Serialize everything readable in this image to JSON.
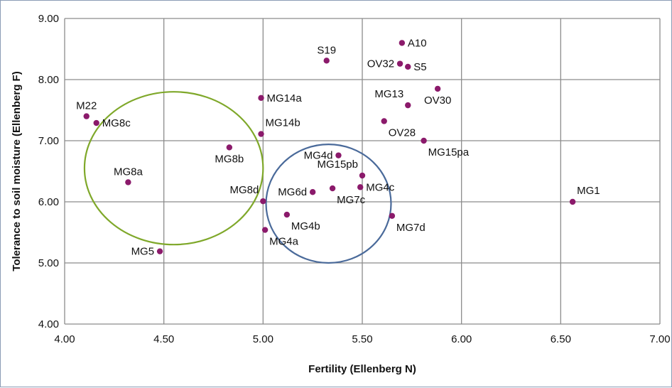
{
  "chart_data": {
    "type": "scatter",
    "title": "",
    "xlabel": "Fertility (Ellenberg N)",
    "ylabel": "Tolerance to soil moisture (Ellenberg F)",
    "xlim": [
      4.0,
      7.0
    ],
    "ylim": [
      4.0,
      9.0
    ],
    "xticks": [
      "4.00",
      "4.50",
      "5.00",
      "5.50",
      "6.00",
      "6.50",
      "7.00"
    ],
    "yticks": [
      "4.00",
      "5.00",
      "6.00",
      "7.00",
      "8.00",
      "9.00"
    ],
    "grid": true,
    "legend": "none",
    "colors": {
      "point": "#8b1a6b",
      "grid": "#8c8c8c",
      "green_ellipse": "#7fa82a",
      "blue_ellipse": "#4a6a9a"
    },
    "points": [
      {
        "label": "A10",
        "x": 5.7,
        "y": 8.6,
        "anchor": "right"
      },
      {
        "label": "S19",
        "x": 5.32,
        "y": 8.31,
        "anchor": "above"
      },
      {
        "label": "OV32",
        "x": 5.69,
        "y": 8.26,
        "anchor": "left"
      },
      {
        "label": "S5",
        "x": 5.73,
        "y": 8.21,
        "anchor": "right"
      },
      {
        "label": "OV30",
        "x": 5.88,
        "y": 7.85,
        "anchor": "below"
      },
      {
        "label": "MG13",
        "x": 5.73,
        "y": 7.58,
        "anchor": "above-left"
      },
      {
        "label": "MG14a",
        "x": 4.99,
        "y": 7.7,
        "anchor": "right"
      },
      {
        "label": "M22",
        "x": 4.11,
        "y": 7.4,
        "anchor": "above"
      },
      {
        "label": "MG8c",
        "x": 4.16,
        "y": 7.29,
        "anchor": "right"
      },
      {
        "label": "OV28",
        "x": 5.61,
        "y": 7.32,
        "anchor": "below-right"
      },
      {
        "label": "MG14b",
        "x": 4.99,
        "y": 7.11,
        "anchor": "above-right"
      },
      {
        "label": "MG15pa",
        "x": 5.81,
        "y": 7.0,
        "anchor": "below-right"
      },
      {
        "label": "MG8b",
        "x": 4.83,
        "y": 6.89,
        "anchor": "below"
      },
      {
        "label": "MG4d",
        "x": 5.38,
        "y": 6.76,
        "anchor": "left"
      },
      {
        "label": "MG15pb",
        "x": 5.5,
        "y": 6.43,
        "anchor": "above-left"
      },
      {
        "label": "MG8a",
        "x": 4.32,
        "y": 6.32,
        "anchor": "above"
      },
      {
        "label": "MG4c",
        "x": 5.49,
        "y": 6.24,
        "anchor": "right"
      },
      {
        "label": "MG7c",
        "x": 5.35,
        "y": 6.22,
        "anchor": "below-right"
      },
      {
        "label": "MG6d",
        "x": 5.25,
        "y": 6.16,
        "anchor": "left"
      },
      {
        "label": "MG8d",
        "x": 5.0,
        "y": 6.01,
        "anchor": "above-left"
      },
      {
        "label": "MG1",
        "x": 6.56,
        "y": 6.0,
        "anchor": "above-right"
      },
      {
        "label": "MG4b",
        "x": 5.12,
        "y": 5.79,
        "anchor": "below-right"
      },
      {
        "label": "MG7d",
        "x": 5.65,
        "y": 5.77,
        "anchor": "below-right"
      },
      {
        "label": "MG4a",
        "x": 5.01,
        "y": 5.54,
        "anchor": "below-right"
      },
      {
        "label": "MG5",
        "x": 4.48,
        "y": 5.19,
        "anchor": "left"
      }
    ],
    "ellipses": [
      {
        "color": "green",
        "cx": 4.55,
        "cy": 6.55,
        "rx": 0.45,
        "ry": 1.25
      },
      {
        "color": "blue",
        "cx": 5.33,
        "cy": 5.97,
        "rx": 0.315,
        "ry": 0.97
      }
    ]
  }
}
